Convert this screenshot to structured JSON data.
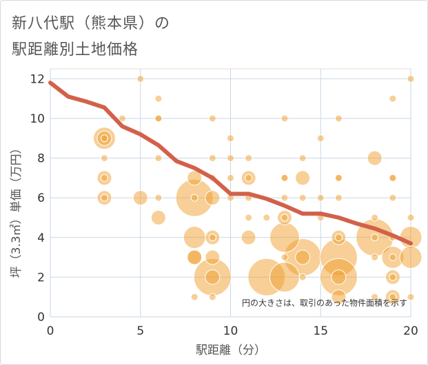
{
  "chart_data": {
    "type": "scatter",
    "title_line1": "新八代駅（熊本県）の",
    "title_line2": "駅距離別土地価格",
    "xlabel": "駅距離（分）",
    "ylabel": "坪（3.3㎡）単価（万円）",
    "note": "円の大きさは、取引のあった物件面積を示す",
    "xlim": [
      0,
      20
    ],
    "ylim": [
      0,
      12.5
    ],
    "x_ticks": [
      "0",
      "5",
      "10",
      "15",
      "20"
    ],
    "y_ticks": [
      "0",
      "2",
      "4",
      "6",
      "8",
      "10",
      "12"
    ],
    "x_tick_values": [
      0,
      5,
      10,
      15,
      20
    ],
    "y_tick_values": [
      0,
      2,
      4,
      6,
      8,
      10,
      12
    ],
    "grid": true,
    "colors": {
      "bubble": "#f0a030",
      "trend": "#d2614a",
      "grid": "#c9d6e3"
    },
    "bubbles": [
      {
        "x": 3,
        "y": 9,
        "s": 3
      },
      {
        "x": 3,
        "y": 9,
        "s": 2
      },
      {
        "x": 3,
        "y": 9,
        "s": 1
      },
      {
        "x": 3,
        "y": 8,
        "s": 1
      },
      {
        "x": 3,
        "y": 7,
        "s": 2
      },
      {
        "x": 3,
        "y": 7,
        "s": 1
      },
      {
        "x": 3,
        "y": 6,
        "s": 2
      },
      {
        "x": 3,
        "y": 6,
        "s": 1
      },
      {
        "x": 4,
        "y": 10,
        "s": 1
      },
      {
        "x": 5,
        "y": 12,
        "s": 1
      },
      {
        "x": 5,
        "y": 6,
        "s": 2
      },
      {
        "x": 6,
        "y": 11,
        "s": 1
      },
      {
        "x": 6,
        "y": 10,
        "s": 1
      },
      {
        "x": 6,
        "y": 10,
        "s": 1
      },
      {
        "x": 6,
        "y": 8,
        "s": 1
      },
      {
        "x": 6,
        "y": 6,
        "s": 1
      },
      {
        "x": 6,
        "y": 5,
        "s": 2
      },
      {
        "x": 8,
        "y": 7,
        "s": 2
      },
      {
        "x": 8,
        "y": 6,
        "s": 5
      },
      {
        "x": 8,
        "y": 6,
        "s": 1
      },
      {
        "x": 8,
        "y": 4,
        "s": 3
      },
      {
        "x": 8,
        "y": 3,
        "s": 2
      },
      {
        "x": 8,
        "y": 3,
        "s": 2
      },
      {
        "x": 8,
        "y": 1,
        "s": 1
      },
      {
        "x": 9,
        "y": 10,
        "s": 1
      },
      {
        "x": 9,
        "y": 8,
        "s": 1
      },
      {
        "x": 9,
        "y": 7,
        "s": 1
      },
      {
        "x": 9,
        "y": 6,
        "s": 2
      },
      {
        "x": 9,
        "y": 4,
        "s": 2
      },
      {
        "x": 9,
        "y": 4,
        "s": 1
      },
      {
        "x": 9,
        "y": 3,
        "s": 2
      },
      {
        "x": 9,
        "y": 2,
        "s": 5
      },
      {
        "x": 9,
        "y": 2,
        "s": 2
      },
      {
        "x": 9,
        "y": 1,
        "s": 1
      },
      {
        "x": 10,
        "y": 9,
        "s": 1
      },
      {
        "x": 10,
        "y": 8,
        "s": 1
      },
      {
        "x": 10,
        "y": 7,
        "s": 1
      },
      {
        "x": 10,
        "y": 6,
        "s": 1
      },
      {
        "x": 11,
        "y": 8,
        "s": 1
      },
      {
        "x": 11,
        "y": 7,
        "s": 2
      },
      {
        "x": 11,
        "y": 7,
        "s": 1
      },
      {
        "x": 11,
        "y": 6,
        "s": 1
      },
      {
        "x": 11,
        "y": 5,
        "s": 1
      },
      {
        "x": 11,
        "y": 4,
        "s": 2
      },
      {
        "x": 12,
        "y": 5,
        "s": 1
      },
      {
        "x": 12,
        "y": 2,
        "s": 5
      },
      {
        "x": 13,
        "y": 10,
        "s": 1
      },
      {
        "x": 13,
        "y": 7,
        "s": 1
      },
      {
        "x": 13,
        "y": 7,
        "s": 1
      },
      {
        "x": 13,
        "y": 6,
        "s": 1
      },
      {
        "x": 13,
        "y": 5,
        "s": 2
      },
      {
        "x": 13,
        "y": 5,
        "s": 1
      },
      {
        "x": 13,
        "y": 4,
        "s": 4
      },
      {
        "x": 13,
        "y": 3,
        "s": 1
      },
      {
        "x": 13,
        "y": 2,
        "s": 4
      },
      {
        "x": 14,
        "y": 8,
        "s": 1
      },
      {
        "x": 14,
        "y": 7,
        "s": 2
      },
      {
        "x": 14,
        "y": 6,
        "s": 1
      },
      {
        "x": 14,
        "y": 3,
        "s": 5
      },
      {
        "x": 14,
        "y": 3,
        "s": 2
      },
      {
        "x": 14,
        "y": 2,
        "s": 1
      },
      {
        "x": 15,
        "y": 9,
        "s": 1
      },
      {
        "x": 15,
        "y": 6,
        "s": 1
      },
      {
        "x": 15,
        "y": 5,
        "s": 1
      },
      {
        "x": 16,
        "y": 10,
        "s": 1
      },
      {
        "x": 16,
        "y": 7,
        "s": 1
      },
      {
        "x": 16,
        "y": 7,
        "s": 1
      },
      {
        "x": 16,
        "y": 6,
        "s": 1
      },
      {
        "x": 16,
        "y": 4,
        "s": 2
      },
      {
        "x": 16,
        "y": 4,
        "s": 1
      },
      {
        "x": 16,
        "y": 3,
        "s": 5
      },
      {
        "x": 16,
        "y": 2,
        "s": 5
      },
      {
        "x": 16,
        "y": 2,
        "s": 2
      },
      {
        "x": 16,
        "y": 1,
        "s": 2
      },
      {
        "x": 18,
        "y": 8,
        "s": 2
      },
      {
        "x": 18,
        "y": 5,
        "s": 1
      },
      {
        "x": 18,
        "y": 4,
        "s": 5
      },
      {
        "x": 18,
        "y": 4,
        "s": 1
      },
      {
        "x": 18,
        "y": 3,
        "s": 1
      },
      {
        "x": 18,
        "y": 1,
        "s": 1
      },
      {
        "x": 19,
        "y": 11,
        "s": 1
      },
      {
        "x": 19,
        "y": 7,
        "s": 1
      },
      {
        "x": 19,
        "y": 7,
        "s": 1
      },
      {
        "x": 19,
        "y": 6,
        "s": 1
      },
      {
        "x": 19,
        "y": 4,
        "s": 1
      },
      {
        "x": 19,
        "y": 3,
        "s": 3
      },
      {
        "x": 19,
        "y": 3,
        "s": 1
      },
      {
        "x": 19,
        "y": 2,
        "s": 2
      },
      {
        "x": 19,
        "y": 2,
        "s": 1
      },
      {
        "x": 19,
        "y": 1,
        "s": 2
      },
      {
        "x": 19,
        "y": 1,
        "s": 1
      },
      {
        "x": 20,
        "y": 12,
        "s": 1
      },
      {
        "x": 20,
        "y": 5,
        "s": 1
      },
      {
        "x": 20,
        "y": 4,
        "s": 3
      },
      {
        "x": 20,
        "y": 3,
        "s": 3
      },
      {
        "x": 20,
        "y": 1,
        "s": 1
      }
    ],
    "trend": {
      "x": [
        0,
        1,
        2,
        3,
        4,
        5,
        6,
        7,
        8,
        9,
        10,
        11,
        12,
        13,
        14,
        15,
        16,
        17,
        18,
        19,
        20
      ],
      "y": [
        11.8,
        11.1,
        10.85,
        10.55,
        9.6,
        9.2,
        8.65,
        7.85,
        7.5,
        7.0,
        6.2,
        6.2,
        5.95,
        5.6,
        5.2,
        5.2,
        5.0,
        4.7,
        4.45,
        4.1,
        3.7
      ]
    }
  }
}
